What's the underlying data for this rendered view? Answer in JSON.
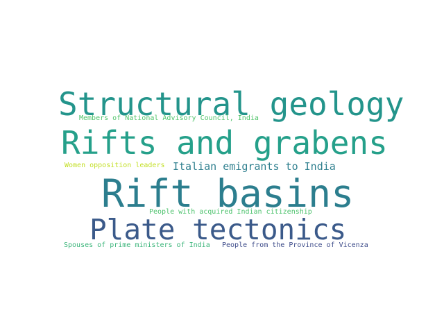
{
  "words": [
    {
      "text": "Structural geology",
      "color": "#23948b"
    },
    {
      "text": "Members of National Advisory Council, India",
      "color": "#50c46a"
    },
    {
      "text": "Rifts and grabens",
      "color": "#25a08a"
    },
    {
      "text": "Women opposition leaders",
      "color": "#c2df23"
    },
    {
      "text": "Italian emigrants to India",
      "color": "#2e7f8e"
    },
    {
      "text": "Rift basins",
      "color": "#2c7e8e"
    },
    {
      "text": "People with acquired Indian citizenship",
      "color": "#4cc26c"
    },
    {
      "text": "Plate tectonics",
      "color": "#3b5a8a"
    },
    {
      "text": "Spouses of prime ministers of India",
      "color": "#3bb57a"
    },
    {
      "text": "People from the Province of Vicenza",
      "color": "#3e4c8a"
    }
  ]
}
